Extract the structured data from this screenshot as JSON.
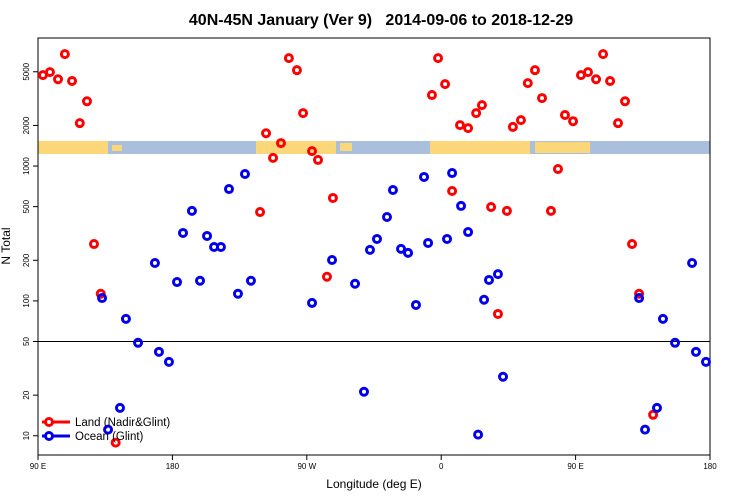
{
  "chart_data": {
    "type": "scatter",
    "title": "40N-45N January (Ver 9)   2014-09-06 to 2018-12-29",
    "xlabel": "Longitude (deg E)",
    "ylabel": "N Total",
    "log_y": true,
    "xlim": [
      90,
      540
    ],
    "ylim": [
      7.2,
      8900
    ],
    "xticks": [
      {
        "value": 90,
        "label": "90 E"
      },
      180,
      {
        "value": 270,
        "label": "90 W"
      },
      {
        "value": 360,
        "label": "0"
      },
      {
        "value": 450,
        "label": "90 E"
      },
      {
        "value": 540,
        "label": "180"
      }
    ],
    "yticks": [
      10,
      20,
      50,
      100,
      200,
      500,
      1000,
      2000,
      5000
    ],
    "reference_line": 50,
    "legend": "bottom-left",
    "series": [
      {
        "name": "Land (Nadir&Glint)",
        "color": "#ff0000",
        "x": [
          93.3,
          98,
          103.4,
          108,
          112.8,
          118,
          122.8,
          127.5,
          132,
          142,
          242.7,
          247.4,
          252.7,
          238.7,
          258,
          263.4,
          267.5,
          273.5,
          277.5,
          287.5,
          283.5,
          353.8,
          357.9,
          362.6,
          367.3,
          372.6,
          378,
          383.4,
          387.3,
          393.4,
          398,
          404,
          408,
          413.4,
          418,
          422.8,
          427.5,
          433.5,
          438.2,
          442.9,
          448.3,
          453.6,
          458.3,
          463.7,
          468.4,
          473.1,
          478.4,
          483.1,
          487.8,
          492.5,
          501.9
        ],
        "values": [
          4720,
          4970,
          4400,
          6760,
          4270,
          2080,
          3020,
          264,
          113,
          8.9,
          1750,
          1150,
          1480,
          456,
          6310,
          5140,
          2470,
          1290,
          1110,
          580,
          151,
          3360,
          6310,
          4050,
          653,
          2010,
          1910,
          2470,
          2830,
          497,
          80,
          465,
          1950,
          2190,
          4120,
          5140,
          3190,
          465,
          950,
          2390,
          2150,
          4720,
          4970,
          4400,
          6760,
          4270,
          2080,
          3020,
          264,
          113,
          14.3
        ]
      },
      {
        "name": "Ocean (Glint)",
        "color": "#0000ee",
        "x": [
          132.9,
          136.9,
          144.9,
          148.9,
          157,
          168.3,
          171,
          177.7,
          183.1,
          187.1,
          193.1,
          198.5,
          203.2,
          207.9,
          212.5,
          217.9,
          223.9,
          228.6,
          232.6,
          273.5,
          286.9,
          302.3,
          308.3,
          312.3,
          317,
          323.7,
          327.7,
          333.1,
          337.8,
          343.1,
          348.5,
          351.2,
          363.9,
          367.3,
          373.3,
          378,
          384.7,
          388.7,
          392,
          398,
          401.4,
          492.5,
          496.5,
          504.5,
          508.5,
          516.6,
          528,
          530.6,
          537.3
        ],
        "values": [
          105,
          11.1,
          16.1,
          73.6,
          48.9,
          191,
          41.9,
          35.3,
          138,
          319,
          465,
          141,
          303,
          251,
          251,
          675,
          113,
          873,
          141,
          96.6,
          201,
          134,
          21.2,
          239,
          288,
          419,
          664,
          243,
          227,
          93.3,
          830,
          269,
          288,
          887,
          506,
          324,
          10.2,
          102,
          143,
          158,
          27.4,
          105,
          11.1,
          16.1,
          73.6,
          48.9,
          191,
          41.9,
          35.3
        ]
      }
    ]
  }
}
